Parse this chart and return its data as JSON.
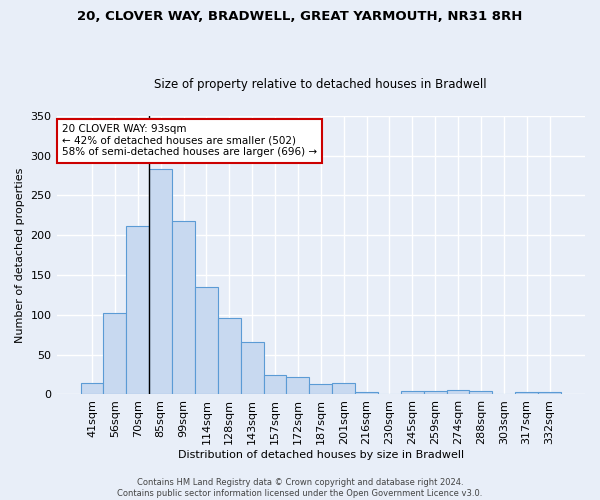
{
  "title1": "20, CLOVER WAY, BRADWELL, GREAT YARMOUTH, NR31 8RH",
  "title2": "Size of property relative to detached houses in Bradwell",
  "xlabel": "Distribution of detached houses by size in Bradwell",
  "ylabel": "Number of detached properties",
  "categories": [
    "41sqm",
    "56sqm",
    "70sqm",
    "85sqm",
    "99sqm",
    "114sqm",
    "128sqm",
    "143sqm",
    "157sqm",
    "172sqm",
    "187sqm",
    "201sqm",
    "216sqm",
    "230sqm",
    "245sqm",
    "259sqm",
    "274sqm",
    "288sqm",
    "303sqm",
    "317sqm",
    "332sqm"
  ],
  "values": [
    14,
    102,
    211,
    283,
    218,
    135,
    96,
    66,
    24,
    22,
    13,
    14,
    3,
    0,
    4,
    4,
    5,
    4,
    0,
    3,
    3
  ],
  "bar_color": "#c8d9f0",
  "bar_edge_color": "#5b9bd5",
  "vline_x": 3,
  "vline_color": "#000000",
  "annotation_text": "20 CLOVER WAY: 93sqm\n← 42% of detached houses are smaller (502)\n58% of semi-detached houses are larger (696) →",
  "annotation_box_color": "#ffffff",
  "annotation_box_edge": "#cc0000",
  "footer1": "Contains HM Land Registry data © Crown copyright and database right 2024.",
  "footer2": "Contains public sector information licensed under the Open Government Licence v3.0.",
  "background_color": "#e8eef8",
  "grid_color": "#ffffff",
  "ylim": [
    0,
    350
  ],
  "yticks": [
    0,
    50,
    100,
    150,
    200,
    250,
    300,
    350
  ]
}
